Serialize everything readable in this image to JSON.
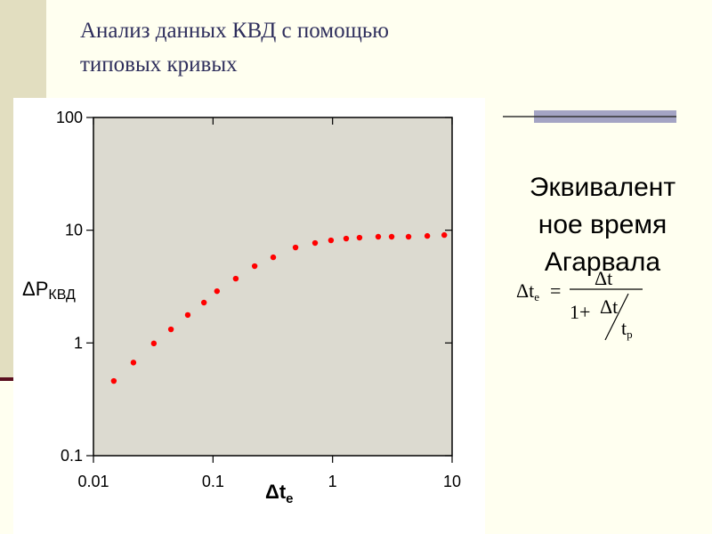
{
  "slide": {
    "title_lines": [
      "Анализ данных КВД с помощью",
      "типовых кривых"
    ],
    "side_text_lines": [
      "Эквивалент",
      "ное время",
      "Агарвала"
    ],
    "formula": {
      "lhs": "Δt",
      "lhs_sub": "e",
      "eq": "=",
      "num": "Δt",
      "den_one": "1+",
      "den_num": "Δt",
      "den_t": "t",
      "den_t_sub": "p"
    }
  },
  "chart_data": {
    "type": "scatter",
    "xlabel": {
      "main": "Δt",
      "sub": "e"
    },
    "ylabel": {
      "main": "ΔP",
      "sub": "КВД"
    },
    "xscale": "log",
    "yscale": "log",
    "xlim": [
      0.01,
      10
    ],
    "ylim": [
      0.1,
      100
    ],
    "xticks": [
      0.01,
      0.1,
      1,
      10
    ],
    "yticks": [
      0.1,
      1,
      10,
      100
    ],
    "series": [
      {
        "color": "#ff0000",
        "x": [
          0.0148,
          0.0216,
          0.032,
          0.0445,
          0.0615,
          0.084,
          0.108,
          0.155,
          0.223,
          0.319,
          0.49,
          0.714,
          0.97,
          1.3,
          1.68,
          2.41,
          3.12,
          4.32,
          6.2,
          8.6
        ],
        "values": [
          0.46,
          0.67,
          0.99,
          1.32,
          1.77,
          2.28,
          2.88,
          3.72,
          4.8,
          5.75,
          7.03,
          7.7,
          8.13,
          8.43,
          8.59,
          8.75,
          8.75,
          8.75,
          8.9,
          9.06
        ]
      }
    ]
  }
}
